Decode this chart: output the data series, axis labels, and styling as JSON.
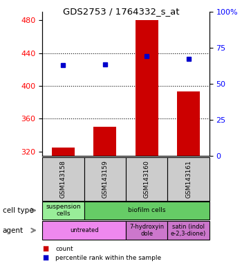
{
  "title": "GDS2753 / 1764332_s_at",
  "samples": [
    "GSM143158",
    "GSM143159",
    "GSM143160",
    "GSM143161"
  ],
  "bar_values": [
    325,
    350,
    480,
    393
  ],
  "scatter_values": [
    425,
    426,
    436,
    433
  ],
  "bar_color": "#cc0000",
  "scatter_color": "#0000cc",
  "ylim_left": [
    315,
    490
  ],
  "ylim_right": [
    0,
    100
  ],
  "yticks_left": [
    320,
    360,
    400,
    440,
    480
  ],
  "yticks_right": [
    0,
    25,
    50,
    75,
    100
  ],
  "ytick_labels_right": [
    "0",
    "25",
    "50",
    "75",
    "100%"
  ],
  "grid_lines": [
    360,
    400,
    440
  ],
  "cell_type_row": [
    {
      "label": "suspension\ncells",
      "colspan": 1,
      "color": "#99ee99"
    },
    {
      "label": "biofilm cells",
      "colspan": 3,
      "color": "#66cc66"
    }
  ],
  "agent_row": [
    {
      "label": "untreated",
      "colspan": 2,
      "color": "#ee88ee"
    },
    {
      "label": "7-hydroxyin\ndole",
      "colspan": 1,
      "color": "#cc77cc"
    },
    {
      "label": "satin (indol\ne-2,3-dione)",
      "colspan": 1,
      "color": "#cc77cc"
    }
  ],
  "row_labels": [
    "cell type",
    "agent"
  ],
  "legend_items": [
    {
      "color": "#cc0000",
      "label": "count"
    },
    {
      "color": "#0000cc",
      "label": "percentile rank within the sample"
    }
  ],
  "sample_box_color": "#cccccc"
}
